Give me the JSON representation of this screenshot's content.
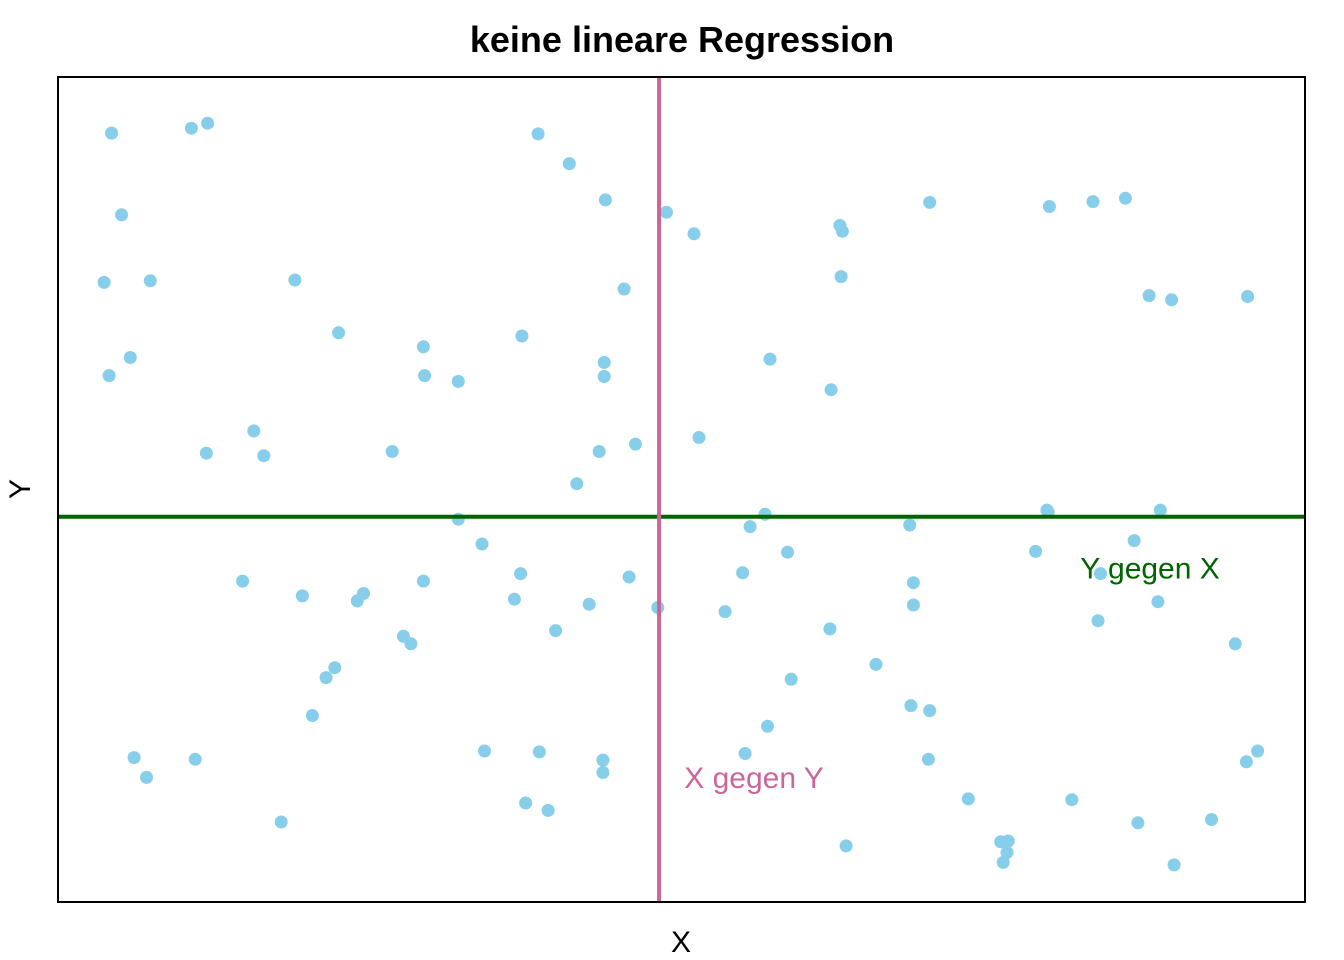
{
  "chart_data": {
    "type": "scatter",
    "title": "keine lineare Regression",
    "xlabel": "X",
    "ylabel": "Y",
    "xlim": [
      0,
      1
    ],
    "ylim": [
      0,
      1
    ],
    "x_ticks_shown": false,
    "y_ticks_shown": false,
    "grid": false,
    "colors": {
      "points": "#87CEEB",
      "y_on_x_line": "#006400",
      "x_on_y_line": "#CC6699",
      "frame": "#000000"
    },
    "regression_lines": {
      "y_on_x": {
        "label": "Y gegen X",
        "orientation": "horizontal",
        "y": 0.467
      },
      "x_on_y": {
        "label": "X gegen Y",
        "orientation": "vertical",
        "x": 0.482
      }
    },
    "points": [
      [
        0.043,
        0.932
      ],
      [
        0.107,
        0.938
      ],
      [
        0.12,
        0.944
      ],
      [
        0.051,
        0.833
      ],
      [
        0.037,
        0.751
      ],
      [
        0.074,
        0.753
      ],
      [
        0.041,
        0.638
      ],
      [
        0.058,
        0.66
      ],
      [
        0.119,
        0.544
      ],
      [
        0.157,
        0.571
      ],
      [
        0.165,
        0.541
      ],
      [
        0.19,
        0.754
      ],
      [
        0.225,
        0.69
      ],
      [
        0.293,
        0.673
      ],
      [
        0.294,
        0.638
      ],
      [
        0.321,
        0.631
      ],
      [
        0.268,
        0.546
      ],
      [
        0.372,
        0.686
      ],
      [
        0.385,
        0.931
      ],
      [
        0.41,
        0.895
      ],
      [
        0.438,
        0.654
      ],
      [
        0.438,
        0.637
      ],
      [
        0.439,
        0.851
      ],
      [
        0.454,
        0.743
      ],
      [
        0.463,
        0.555
      ],
      [
        0.434,
        0.546
      ],
      [
        0.416,
        0.507
      ],
      [
        0.321,
        0.464
      ],
      [
        0.34,
        0.434
      ],
      [
        0.371,
        0.398
      ],
      [
        0.148,
        0.389
      ],
      [
        0.196,
        0.371
      ],
      [
        0.245,
        0.374
      ],
      [
        0.293,
        0.389
      ],
      [
        0.24,
        0.365
      ],
      [
        0.277,
        0.322
      ],
      [
        0.204,
        0.226
      ],
      [
        0.215,
        0.272
      ],
      [
        0.222,
        0.284
      ],
      [
        0.426,
        0.361
      ],
      [
        0.458,
        0.394
      ],
      [
        0.399,
        0.329
      ],
      [
        0.366,
        0.367
      ],
      [
        0.283,
        0.313
      ],
      [
        0.061,
        0.175
      ],
      [
        0.071,
        0.151
      ],
      [
        0.11,
        0.173
      ],
      [
        0.179,
        0.097
      ],
      [
        0.342,
        0.183
      ],
      [
        0.386,
        0.182
      ],
      [
        0.375,
        0.12
      ],
      [
        0.393,
        0.111
      ],
      [
        0.437,
        0.172
      ],
      [
        0.437,
        0.157
      ],
      [
        0.481,
        0.357
      ],
      [
        0.488,
        0.836
      ],
      [
        0.51,
        0.81
      ],
      [
        0.514,
        0.563
      ],
      [
        0.571,
        0.658
      ],
      [
        0.555,
        0.455
      ],
      [
        0.567,
        0.47
      ],
      [
        0.549,
        0.399
      ],
      [
        0.535,
        0.352
      ],
      [
        0.585,
        0.424
      ],
      [
        0.588,
        0.27
      ],
      [
        0.569,
        0.213
      ],
      [
        0.551,
        0.18
      ],
      [
        0.62,
        0.621
      ],
      [
        0.627,
        0.82
      ],
      [
        0.629,
        0.813
      ],
      [
        0.628,
        0.758
      ],
      [
        0.619,
        0.331
      ],
      [
        0.656,
        0.288
      ],
      [
        0.684,
        0.238
      ],
      [
        0.699,
        0.232
      ],
      [
        0.698,
        0.173
      ],
      [
        0.73,
        0.125
      ],
      [
        0.756,
        0.073
      ],
      [
        0.762,
        0.074
      ],
      [
        0.761,
        0.06
      ],
      [
        0.632,
        0.068
      ],
      [
        0.699,
        0.848
      ],
      [
        0.795,
        0.843
      ],
      [
        0.83,
        0.849
      ],
      [
        0.856,
        0.853
      ],
      [
        0.875,
        0.735
      ],
      [
        0.893,
        0.73
      ],
      [
        0.954,
        0.734
      ],
      [
        0.683,
        0.457
      ],
      [
        0.686,
        0.387
      ],
      [
        0.784,
        0.425
      ],
      [
        0.794,
        0.473
      ],
      [
        0.884,
        0.475
      ],
      [
        0.863,
        0.438
      ],
      [
        0.834,
        0.341
      ],
      [
        0.836,
        0.398
      ],
      [
        0.793,
        0.475
      ],
      [
        0.686,
        0.36
      ],
      [
        0.882,
        0.364
      ],
      [
        0.944,
        0.313
      ],
      [
        0.962,
        0.183
      ],
      [
        0.953,
        0.17
      ],
      [
        0.925,
        0.1
      ],
      [
        0.895,
        0.045
      ],
      [
        0.866,
        0.096
      ],
      [
        0.758,
        0.048
      ],
      [
        0.813,
        0.124
      ]
    ]
  }
}
